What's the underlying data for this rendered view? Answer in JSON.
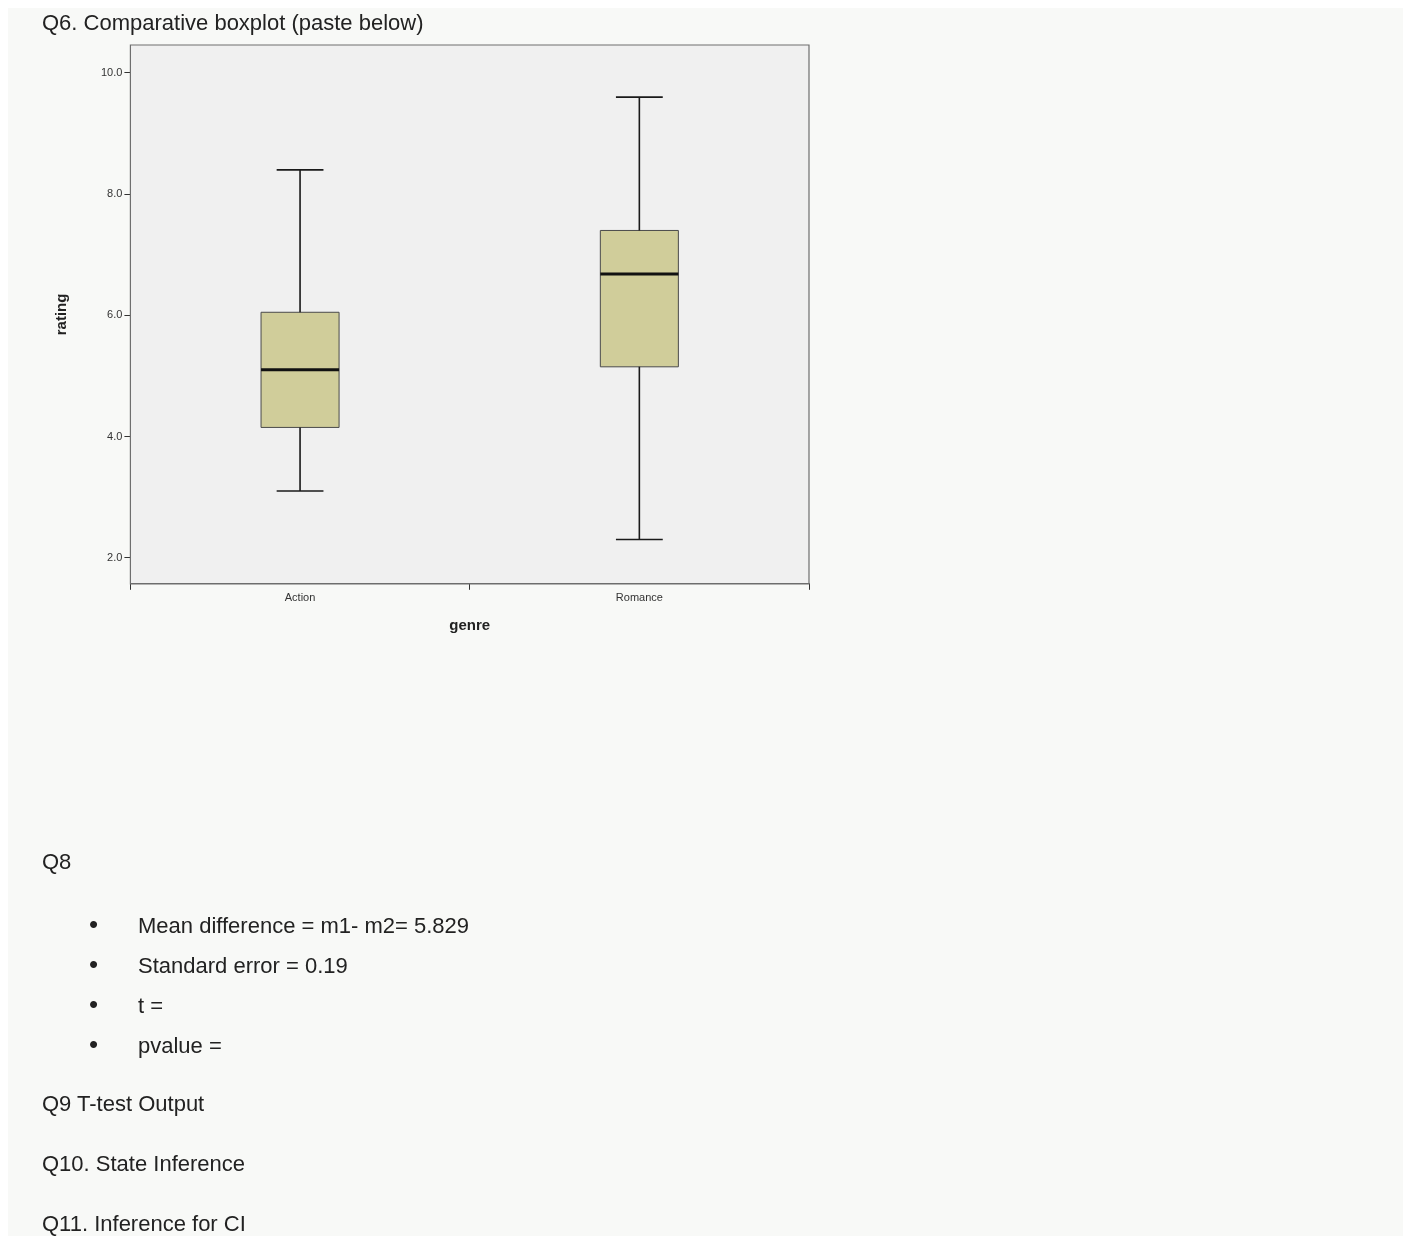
{
  "chart_data": {
    "type": "box",
    "title": "Q6. Comparative boxplot (paste below)",
    "xlabel": "genre",
    "ylabel": "rating",
    "categories": [
      "Action",
      "Romance"
    ],
    "color": "#d0cd9a",
    "boxes": [
      {
        "low": 3.1,
        "q1": 4.15,
        "median": 5.1,
        "q3": 6.05,
        "high": 8.4
      },
      {
        "low": 2.3,
        "q1": 5.15,
        "median": 6.68,
        "q3": 7.4,
        "high": 9.6
      }
    ],
    "ylim": [
      1.57,
      10.46
    ],
    "yticks": [
      {
        "value": 2,
        "label": "2.0"
      },
      {
        "value": 4,
        "label": "4.0"
      },
      {
        "value": 6,
        "label": "6.0"
      },
      {
        "value": 8,
        "label": "8.0"
      },
      {
        "value": 10,
        "label": "10.0"
      }
    ],
    "annotations": [
      "Q8",
      "• Mean difference = m1- m2= 5.829",
      "• Standard error = 0.19",
      "• t =",
      "• pvalue =",
      "Q9 T-test Output",
      "Q10. State Inference",
      "Q11. Inference for CI"
    ]
  }
}
